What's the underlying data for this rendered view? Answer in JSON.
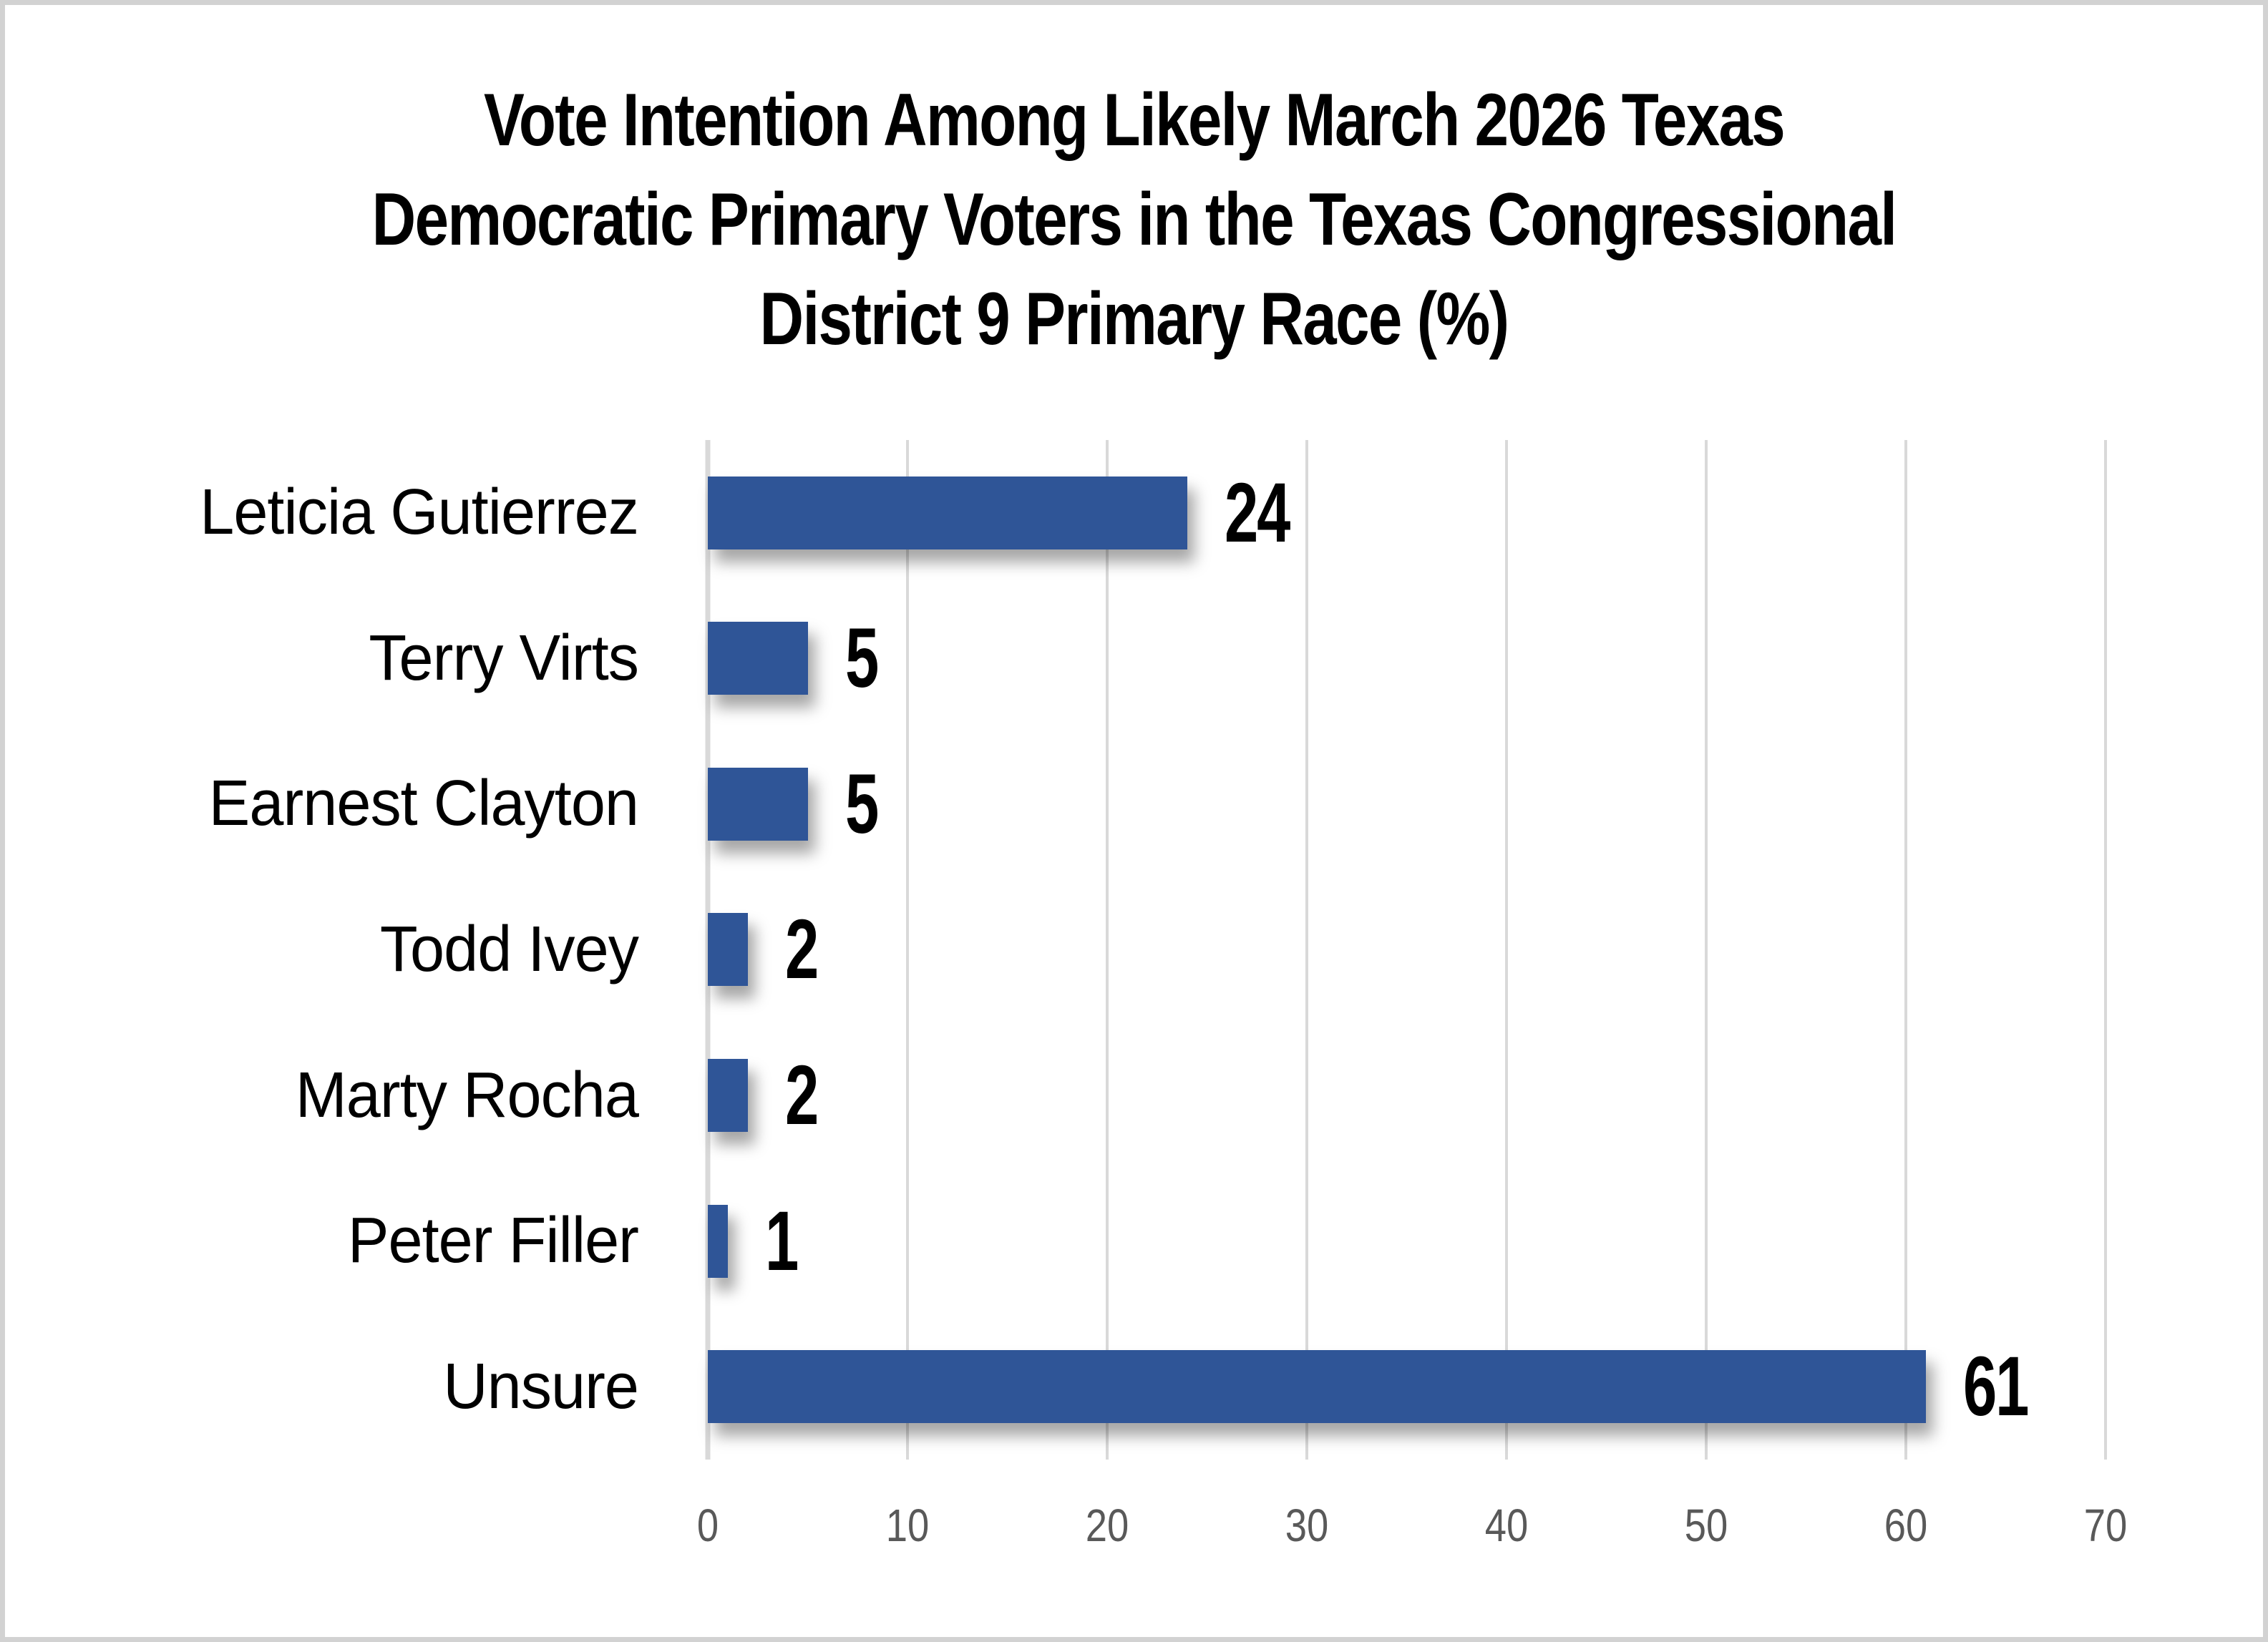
{
  "chart_data": {
    "type": "bar",
    "orientation": "horizontal",
    "title": "Vote Intention Among Likely March 2026 Texas Democratic Primary Voters in the Texas Congressional District 9 Primary Race (%)",
    "title_lines": [
      "Vote Intention Among Likely March 2026 Texas",
      "Democratic Primary Voters in the Texas Congressional",
      "District 9 Primary Race (%)"
    ],
    "categories": [
      "Leticia Gutierrez",
      "Terry Virts",
      "Earnest Clayton",
      "Todd Ivey",
      "Marty Rocha",
      "Peter Filler",
      "Unsure"
    ],
    "values": [
      24,
      5,
      5,
      2,
      2,
      1,
      61
    ],
    "data_labels": [
      "24",
      "5",
      "5",
      "2",
      "2",
      "1",
      "61"
    ],
    "xlabel": "",
    "ylabel": "",
    "xlim": [
      0,
      70
    ],
    "xticks": [
      0,
      10,
      20,
      30,
      40,
      50,
      60,
      70
    ],
    "grid": "vertical-gridlines-on",
    "legend": "none",
    "colors": {
      "bar": "#2F5597",
      "gridline": "#D9D9D9",
      "tick_label": "#595959",
      "category_label": "#000000",
      "title": "#000000",
      "background": "#FFFFFF",
      "frame_border": "#D2D2D2"
    }
  }
}
